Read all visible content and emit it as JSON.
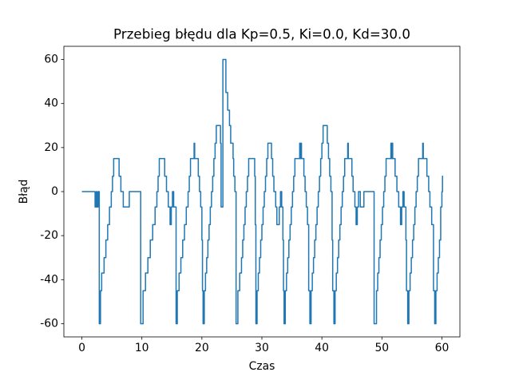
{
  "chart_data": {
    "type": "line",
    "title": "Przebieg błędu dla Kp=0.5, Ki=0.0, Kd=30.0",
    "xlabel": "Czas",
    "ylabel": "Błąd",
    "drawstyle": "steps-post",
    "x": [
      0,
      2.2,
      2.4,
      2.5,
      2.7,
      2.9,
      3.1,
      3.3,
      3.7,
      4.0,
      4.3,
      4.6,
      4.9,
      5.1,
      5.3,
      6.2,
      6.5,
      6.9,
      7.9,
      9.8,
      10.2,
      10.6,
      11.0,
      11.4,
      11.8,
      12.2,
      12.5,
      12.7,
      12.9,
      13.8,
      14.1,
      14.4,
      14.7,
      14.9,
      15.1,
      15.3,
      15.7,
      15.9,
      16.2,
      16.5,
      16.8,
      17.1,
      17.4,
      17.7,
      17.9,
      18.1,
      18.7,
      18.8,
      19.4,
      19.6,
      19.8,
      20.0,
      20.1,
      20.2,
      20.4,
      20.6,
      20.8,
      21.0,
      21.2,
      21.4,
      21.6,
      21.8,
      22.0,
      22.2,
      22.4,
      23.1,
      23.2,
      23.5,
      24.0,
      24.3,
      24.6,
      24.8,
      25.0,
      25.2,
      25.3,
      25.5,
      25.7,
      26.0,
      26.3,
      26.6,
      26.8,
      27.0,
      27.2,
      27.4,
      27.6,
      27.8,
      28.8,
      28.9,
      29.0,
      29.2,
      29.4,
      29.6,
      29.8,
      30.0,
      30.2,
      30.4,
      30.6,
      30.8,
      31.0,
      31.6,
      31.8,
      32.0,
      32.3,
      32.5,
      32.9,
      33.1,
      33.3,
      33.5,
      33.6,
      33.7,
      33.9,
      34.1,
      34.3,
      34.5,
      34.7,
      34.9,
      35.1,
      35.3,
      35.5,
      36.3,
      36.4,
      36.5,
      36.6,
      37.0,
      37.2,
      37.4,
      37.6,
      37.8,
      38.0,
      38.2,
      38.4,
      38.6,
      38.8,
      39.0,
      39.2,
      39.4,
      39.6,
      39.8,
      40.0,
      40.2,
      40.9,
      41.1,
      41.3,
      41.5,
      41.7,
      41.8,
      42.0,
      42.2,
      42.4,
      42.6,
      42.8,
      43.0,
      43.2,
      43.4,
      43.6,
      43.8,
      44.3,
      44.4,
      45.0,
      45.2,
      45.5,
      45.7,
      45.9,
      46.1,
      46.4,
      47.0,
      48.7,
      49.1,
      49.3,
      49.5,
      49.7,
      49.9,
      50.1,
      50.3,
      50.5,
      50.7,
      51.5,
      51.6,
      51.7,
      51.8,
      52.2,
      52.5,
      52.8,
      53.1,
      53.3,
      53.5,
      53.7,
      54.0,
      54.1,
      54.3,
      54.5,
      54.7,
      54.9,
      55.1,
      55.3,
      55.5,
      55.7,
      55.9,
      56.1,
      56.8,
      56.9,
      57.5,
      57.8,
      58.0,
      58.3,
      58.6,
      58.8,
      59.0,
      59.2,
      59.4,
      59.6,
      59.8,
      60.0,
      60.1,
      60.2
    ],
    "series": [
      {
        "name": "Błąd",
        "color": "#1f77b4",
        "values": [
          0,
          -7,
          0,
          -7,
          0,
          -60,
          -45,
          -37,
          -30,
          -22,
          -15,
          -7,
          0,
          7,
          15,
          7,
          0,
          -7,
          0,
          -60,
          -45,
          -37,
          -30,
          -22,
          -15,
          -7,
          0,
          7,
          15,
          7,
          0,
          -7,
          -15,
          -7,
          0,
          -7,
          -60,
          -45,
          -37,
          -30,
          -22,
          -15,
          -7,
          0,
          7,
          15,
          22,
          15,
          7,
          0,
          -7,
          -22,
          -45,
          -60,
          -45,
          -37,
          -30,
          -22,
          -15,
          -7,
          0,
          7,
          15,
          22,
          30,
          22,
          -7,
          60,
          45,
          37,
          30,
          22,
          22,
          15,
          7,
          0,
          -60,
          -45,
          -37,
          -30,
          -22,
          -15,
          -7,
          0,
          7,
          15,
          7,
          -15,
          -60,
          -45,
          -37,
          -30,
          -22,
          -15,
          -7,
          0,
          7,
          15,
          22,
          15,
          7,
          0,
          -7,
          -15,
          -7,
          0,
          -7,
          -22,
          -45,
          -60,
          -45,
          -37,
          -30,
          -22,
          -15,
          -7,
          0,
          7,
          15,
          22,
          15,
          22,
          15,
          7,
          0,
          -7,
          -15,
          -45,
          -60,
          -45,
          -37,
          -30,
          -22,
          -15,
          -7,
          0,
          7,
          15,
          22,
          30,
          22,
          15,
          7,
          0,
          -22,
          -45,
          -60,
          -45,
          -37,
          -30,
          -22,
          -15,
          -7,
          0,
          7,
          15,
          22,
          15,
          7,
          0,
          -7,
          -15,
          -7,
          0,
          -7,
          0,
          -60,
          -45,
          -37,
          -30,
          -22,
          -15,
          -7,
          0,
          7,
          15,
          22,
          15,
          22,
          15,
          7,
          0,
          -7,
          -15,
          -7,
          0,
          -7,
          -22,
          -45,
          -60,
          -45,
          -37,
          -30,
          -22,
          -15,
          -7,
          0,
          7,
          15,
          22,
          15,
          7,
          0,
          -7,
          -15,
          -45,
          -60,
          -45,
          -37,
          -30,
          -22,
          -7,
          0,
          7,
          7
        ]
      }
    ],
    "xlim": [
      -3,
      63
    ],
    "ylim": [
      -66,
      66
    ],
    "xticks": [
      0,
      10,
      20,
      30,
      40,
      50,
      60
    ],
    "yticks": [
      -60,
      -40,
      -20,
      0,
      20,
      40,
      60
    ]
  }
}
